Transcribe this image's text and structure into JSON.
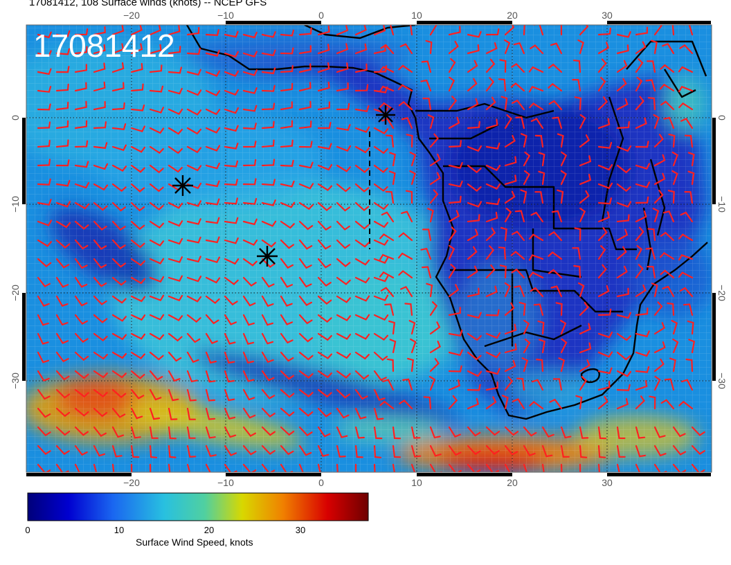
{
  "title": "17081412, 108 Surface winds (knots) -- NCEP GFS",
  "stamp": "17081412",
  "axes": {
    "lon_top": [
      "−20",
      "−10",
      "0",
      "10",
      "20",
      "30"
    ],
    "lon_bottom": [
      "−20",
      "−10",
      "0",
      "10",
      "20",
      "30"
    ],
    "lat_left": [
      "0",
      "−10",
      "−20",
      "−30"
    ],
    "lat_right": [
      "0",
      "−10",
      "−20",
      "−30"
    ]
  },
  "colorbar": {
    "label": "Surface Wind Speed, knots",
    "ticks": [
      "0",
      "10",
      "20",
      "30"
    ],
    "range": [
      0,
      37
    ],
    "colors": [
      "#00007a",
      "#0000d8",
      "#1e6cf0",
      "#28c8dc",
      "#d8d800",
      "#f08000",
      "#d80000",
      "#6e0000"
    ]
  },
  "markers": [
    "storm-center-north",
    "storm-center-west",
    "storm-center-middle"
  ],
  "colors": {
    "wind_barbs": "#ff2020",
    "land": "#0000aa",
    "ocean_base": "#1a9ae0"
  }
}
